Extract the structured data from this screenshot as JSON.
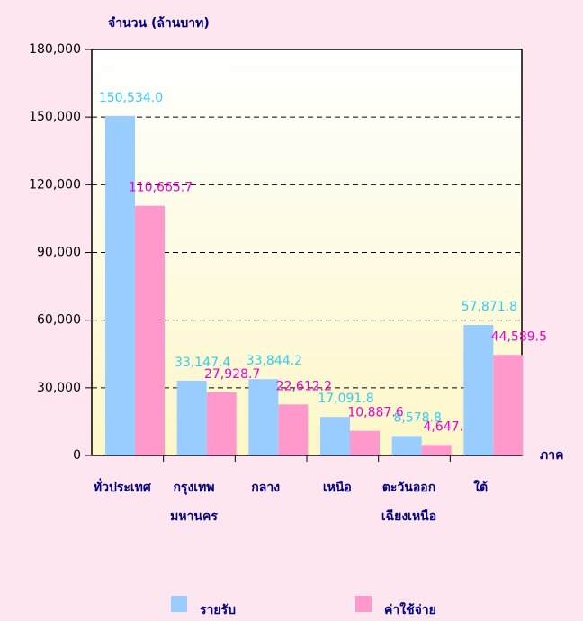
{
  "chart_data": {
    "type": "bar",
    "y_label": "จำนวน (ล้านบาท)",
    "x_label": "ภาค",
    "categories": [
      [
        "ทั่วประเทศ"
      ],
      [
        "กรุงเทพ",
        "มหานคร"
      ],
      [
        "กลาง"
      ],
      [
        "เหนือ"
      ],
      [
        "ตะวันออก",
        "เฉียงเหนือ"
      ],
      [
        "ใต้"
      ]
    ],
    "series": [
      {
        "name": "รายรับ",
        "color": "#99ccff",
        "label_color": "#33ccee",
        "values": [
          150534.0,
          33147.4,
          33844.2,
          17091.8,
          8578.8,
          57871.8
        ],
        "value_labels": [
          "150,534.0",
          "33,147.4",
          "33,844.2",
          "17,091.8",
          "8,578.8",
          "57,871.8"
        ]
      },
      {
        "name": "ค่าใช้จ่าย",
        "color": "#ff99cc",
        "label_color": "#ee00cc",
        "values": [
          110665.7,
          27928.7,
          22612.2,
          10887.6,
          4647.7,
          44589.5
        ],
        "value_labels": [
          "110,665.7",
          "27,928.7",
          "22,612.2",
          "10,887.6",
          "4,647.7",
          "44,589.5"
        ]
      }
    ],
    "ylim": [
      0,
      180000
    ],
    "yticks": [
      0,
      {
        "value": 30000,
        "label": "30,000"
      },
      {
        "value": 60000,
        "label": "60,000"
      },
      {
        "value": 90000,
        "label": "90,000"
      },
      {
        "value": 120000,
        "label": "120,000"
      },
      {
        "value": 150000,
        "label": "150,000"
      },
      {
        "value": 180000,
        "label": "180,000"
      }
    ],
    "grid": true,
    "legend": "bottom"
  }
}
